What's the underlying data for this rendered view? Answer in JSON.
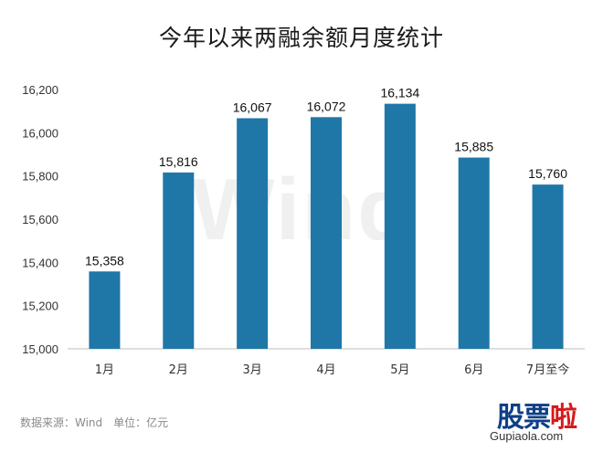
{
  "chart_data": {
    "type": "bar",
    "title": "今年以来两融余额月度统计",
    "categories": [
      "1月",
      "2月",
      "3月",
      "4月",
      "5月",
      "6月",
      "7月至今"
    ],
    "values": [
      15358,
      15816,
      16067,
      16072,
      16134,
      15885,
      15760
    ],
    "value_labels": [
      "15,358",
      "15,816",
      "16,067",
      "16,072",
      "16,134",
      "15,885",
      "15,760"
    ],
    "yticks": [
      "15,000",
      "15,200",
      "15,400",
      "15,600",
      "15,800",
      "16,000",
      "16,200"
    ],
    "ylim": [
      15000,
      16200
    ],
    "xlabel": "",
    "ylabel": "",
    "grid": false,
    "bar_color": "#1f77a8"
  },
  "source_text": "数据来源：Wind　单位：亿元",
  "watermark_text": "Wind",
  "logo": {
    "part1": "股",
    "part2": "票",
    "part3": "啦"
  },
  "site_text": "Gupiaola.com"
}
